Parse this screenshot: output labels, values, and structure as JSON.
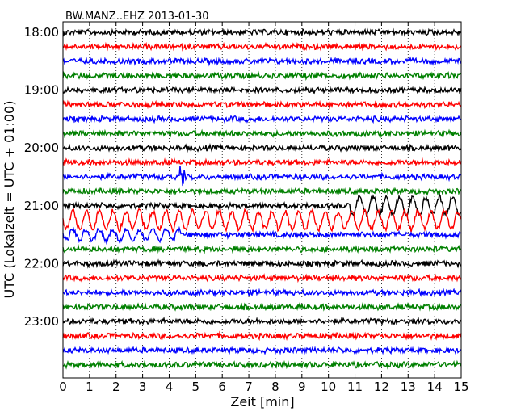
{
  "chart_data": {
    "type": "line",
    "title": "BW.MANZ..EHZ 2013-01-30",
    "xlabel": "Zeit  [min]",
    "ylabel": "UTC (Lokalzeit = UTC + 01:00)",
    "xlim": [
      0,
      15
    ],
    "x_ticks": [
      "0",
      "1",
      "2",
      "3",
      "4",
      "5",
      "6",
      "7",
      "8",
      "9",
      "10",
      "11",
      "12",
      "13",
      "14",
      "15"
    ],
    "y_ticks": [
      "18:00",
      "19:00",
      "20:00",
      "21:00",
      "22:00",
      "23:00"
    ],
    "grid": "vertical dotted",
    "series_colors": [
      "#000000",
      "#ff0000",
      "#0000ff",
      "#008000"
    ],
    "rows": [
      "18:00",
      "18:15",
      "18:30",
      "18:45",
      "19:00",
      "19:15",
      "19:30",
      "19:45",
      "20:00",
      "20:15",
      "20:30",
      "20:45",
      "21:00",
      "21:15",
      "21:30",
      "21:45",
      "22:00",
      "22:15",
      "22:30",
      "22:45",
      "23:00",
      "23:15",
      "23:30",
      "23:45"
    ],
    "events": [
      {
        "row": "20:30",
        "minute": 4.5,
        "description": "single spike"
      },
      {
        "row": "21:00",
        "minute_start": 10.8,
        "minute_end": 15,
        "description": "large-amplitude oscillation"
      },
      {
        "row": "21:15",
        "minute_start": 0,
        "minute_end": 15,
        "description": "large-amplitude oscillation"
      },
      {
        "row": "21:30",
        "minute_start": 0,
        "minute_end": 4.5,
        "description": "elevated amplitude"
      }
    ]
  }
}
